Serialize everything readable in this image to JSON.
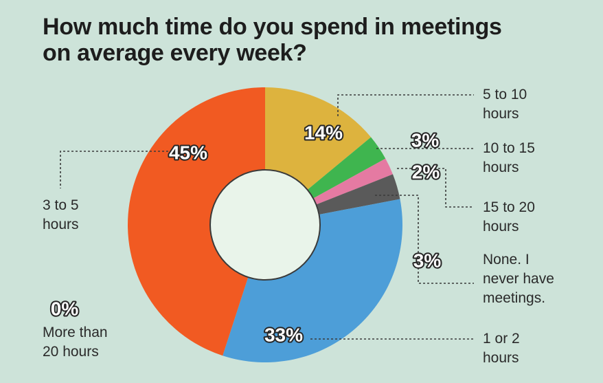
{
  "chart_data": {
    "type": "pie",
    "title_lines": [
      "How much time do you spend in meetings",
      "on average every week?"
    ],
    "unit": "%",
    "slices": [
      {
        "label": "5 to 10 hours",
        "label_lines": [
          "5 to 10",
          "hours"
        ],
        "value": 14,
        "color": "#ddb33e"
      },
      {
        "label": "10 to 15 hours",
        "label_lines": [
          "10 to 15",
          "hours"
        ],
        "value": 3,
        "color": "#3fb54f"
      },
      {
        "label": "15 to 20 hours",
        "label_lines": [
          "15 to 20",
          "hours"
        ],
        "value": 2,
        "color": "#e57aa2"
      },
      {
        "label": "None. I never have meetings.",
        "label_lines": [
          "None. I",
          "never have",
          "meetings."
        ],
        "value": 3,
        "color": "#5a5a5a"
      },
      {
        "label": "1 or 2 hours",
        "label_lines": [
          "1 or 2",
          "hours"
        ],
        "value": 33,
        "color": "#4d9ed8"
      },
      {
        "label": "3 to 5 hours",
        "label_lines": [
          "3 to 5",
          "hours"
        ],
        "value": 45,
        "color": "#f15a22"
      },
      {
        "label": "More than 20 hours",
        "label_lines": [
          "More than",
          "20 hours"
        ],
        "value": 0,
        "color": "#ffffff"
      }
    ],
    "center_color": "#e9f4ea"
  }
}
